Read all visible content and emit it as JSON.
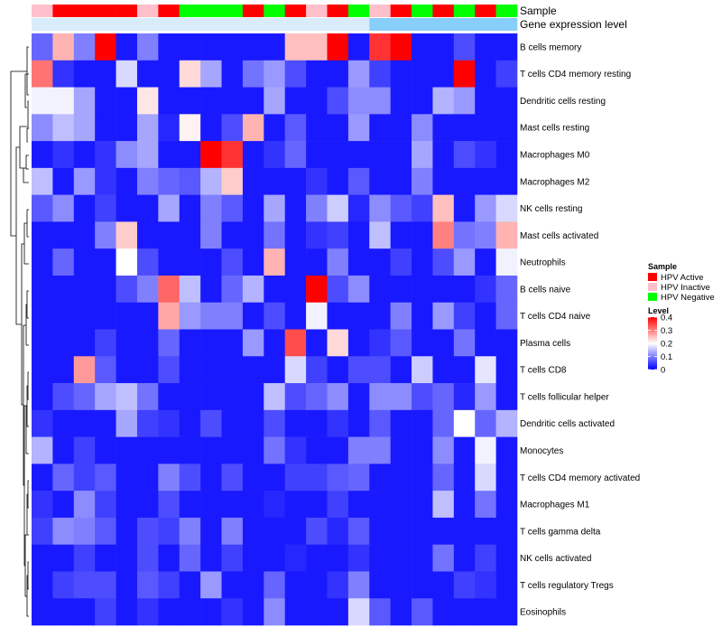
{
  "chart_data": {
    "type": "heatmap",
    "title": "",
    "row_labels": [
      "B cells memory",
      "T cells CD4 memory resting",
      "Dendritic cells resting",
      "Mast cells resting",
      "Macrophages M0",
      "Macrophages M2",
      "NK cells resting",
      "Mast cells activated",
      "Neutrophils",
      "B cells naive",
      "T cells CD4 naive",
      "Plasma cells",
      "T cells CD8",
      "T cells follicular helper",
      "Dendritic cells activated",
      "Monocytes",
      "T cells CD4 memory activated",
      "Macrophages M1",
      "T cells gamma delta",
      "NK cells activated",
      "T cells regulatory  Tregs",
      "Eosinophils"
    ],
    "annotation_tracks": [
      {
        "label": "Sample",
        "values": [
          "HPV Inactive",
          "HPV Active",
          "HPV Active",
          "HPV Active",
          "HPV Active",
          "HPV Inactive",
          "HPV Active",
          "HPV Negative",
          "HPV Negative",
          "HPV Negative",
          "HPV Active",
          "HPV Negative",
          "HPV Active",
          "HPV Inactive",
          "HPV Active",
          "HPV Negative",
          "HPV Inactive",
          "HPV Active",
          "HPV Negative",
          "HPV Active",
          "HPV Negative",
          "HPV Active",
          "HPV Negative"
        ]
      },
      {
        "label": "Gene expression level",
        "values": [
          "low",
          "low",
          "low",
          "low",
          "low",
          "low",
          "low",
          "low",
          "low",
          "low",
          "low",
          "low",
          "low",
          "low",
          "low",
          "low",
          "high",
          "high",
          "high",
          "high",
          "high",
          "high",
          "high"
        ]
      }
    ],
    "values": [
      [
        0.08,
        0.26,
        0.1,
        0.4,
        0.02,
        0.1,
        0.02,
        0.02,
        0.02,
        0.02,
        0.02,
        0.02,
        0.25,
        0.25,
        0.4,
        0.02,
        0.36,
        0.4,
        0.02,
        0.02,
        0.06,
        0.02,
        0.02
      ],
      [
        0.31,
        0.04,
        0.02,
        0.02,
        0.17,
        0.02,
        0.02,
        0.23,
        0.13,
        0.02,
        0.09,
        0.12,
        0.06,
        0.02,
        0.02,
        0.12,
        0.05,
        0.02,
        0.02,
        0.02,
        0.4,
        0.02,
        0.05
      ],
      [
        0.19,
        0.19,
        0.13,
        0.02,
        0.02,
        0.22,
        0.02,
        0.02,
        0.02,
        0.02,
        0.02,
        0.13,
        0.02,
        0.02,
        0.06,
        0.11,
        0.11,
        0.02,
        0.02,
        0.14,
        0.12,
        0.02,
        0.02
      ],
      [
        0.11,
        0.15,
        0.13,
        0.02,
        0.02,
        0.13,
        0.03,
        0.21,
        0.02,
        0.06,
        0.26,
        0.02,
        0.07,
        0.02,
        0.02,
        0.12,
        0.02,
        0.02,
        0.11,
        0.02,
        0.02,
        0.02,
        0.02
      ],
      [
        0.02,
        0.04,
        0.02,
        0.04,
        0.11,
        0.13,
        0.02,
        0.02,
        0.4,
        0.36,
        0.02,
        0.04,
        0.08,
        0.02,
        0.02,
        0.02,
        0.02,
        0.02,
        0.13,
        0.02,
        0.06,
        0.04,
        0.02
      ],
      [
        0.15,
        0.02,
        0.12,
        0.04,
        0.02,
        0.1,
        0.08,
        0.07,
        0.14,
        0.24,
        0.02,
        0.02,
        0.02,
        0.04,
        0.02,
        0.07,
        0.02,
        0.02,
        0.1,
        0.02,
        0.02,
        0.02,
        0.02
      ],
      [
        0.07,
        0.11,
        0.02,
        0.05,
        0.02,
        0.02,
        0.13,
        0.02,
        0.1,
        0.07,
        0.02,
        0.13,
        0.02,
        0.1,
        0.16,
        0.03,
        0.11,
        0.07,
        0.05,
        0.25,
        0.02,
        0.12,
        0.17
      ],
      [
        0.02,
        0.02,
        0.02,
        0.1,
        0.24,
        0.02,
        0.02,
        0.02,
        0.1,
        0.02,
        0.02,
        0.09,
        0.02,
        0.04,
        0.05,
        0.02,
        0.15,
        0.02,
        0.02,
        0.3,
        0.09,
        0.1,
        0.26
      ],
      [
        0.02,
        0.08,
        0.02,
        0.02,
        0.2,
        0.06,
        0.02,
        0.02,
        0.02,
        0.06,
        0.02,
        0.26,
        0.02,
        0.02,
        0.1,
        0.02,
        0.02,
        0.05,
        0.02,
        0.06,
        0.12,
        0.02,
        0.19
      ],
      [
        0.02,
        0.02,
        0.02,
        0.02,
        0.06,
        0.1,
        0.32,
        0.15,
        0.02,
        0.08,
        0.14,
        0.02,
        0.02,
        0.4,
        0.06,
        0.11,
        0.02,
        0.02,
        0.02,
        0.02,
        0.02,
        0.04,
        0.08
      ],
      [
        0.02,
        0.02,
        0.02,
        0.02,
        0.02,
        0.02,
        0.27,
        0.12,
        0.1,
        0.1,
        0.02,
        0.06,
        0.02,
        0.19,
        0.02,
        0.02,
        0.02,
        0.1,
        0.02,
        0.12,
        0.05,
        0.02,
        0.08
      ],
      [
        0.02,
        0.02,
        0.02,
        0.05,
        0.02,
        0.02,
        0.08,
        0.02,
        0.02,
        0.02,
        0.12,
        0.02,
        0.34,
        0.02,
        0.23,
        0.02,
        0.04,
        0.07,
        0.02,
        0.02,
        0.09,
        0.02,
        0.02
      ],
      [
        0.02,
        0.02,
        0.28,
        0.07,
        0.02,
        0.02,
        0.06,
        0.02,
        0.02,
        0.02,
        0.02,
        0.02,
        0.17,
        0.05,
        0.02,
        0.06,
        0.06,
        0.02,
        0.16,
        0.02,
        0.02,
        0.18,
        0.02
      ],
      [
        0.02,
        0.06,
        0.08,
        0.13,
        0.15,
        0.09,
        0.02,
        0.02,
        0.02,
        0.02,
        0.02,
        0.15,
        0.06,
        0.08,
        0.11,
        0.02,
        0.11,
        0.11,
        0.06,
        0.08,
        0.03,
        0.12,
        0.02
      ],
      [
        0.04,
        0.02,
        0.02,
        0.02,
        0.13,
        0.05,
        0.04,
        0.02,
        0.06,
        0.02,
        0.02,
        0.06,
        0.02,
        0.02,
        0.04,
        0.02,
        0.07,
        0.02,
        0.02,
        0.08,
        0.2,
        0.08,
        0.14
      ],
      [
        0.14,
        0.02,
        0.05,
        0.02,
        0.02,
        0.02,
        0.02,
        0.02,
        0.02,
        0.02,
        0.02,
        0.09,
        0.04,
        0.02,
        0.02,
        0.1,
        0.1,
        0.02,
        0.02,
        0.11,
        0.02,
        0.19,
        0.02
      ],
      [
        0.02,
        0.08,
        0.05,
        0.07,
        0.02,
        0.02,
        0.1,
        0.06,
        0.02,
        0.06,
        0.02,
        0.02,
        0.05,
        0.05,
        0.07,
        0.08,
        0.02,
        0.02,
        0.02,
        0.08,
        0.02,
        0.17,
        0.02
      ],
      [
        0.04,
        0.02,
        0.11,
        0.05,
        0.02,
        0.02,
        0.06,
        0.02,
        0.02,
        0.02,
        0.02,
        0.03,
        0.02,
        0.02,
        0.05,
        0.02,
        0.02,
        0.02,
        0.02,
        0.15,
        0.02,
        0.09,
        0.02
      ],
      [
        0.05,
        0.11,
        0.1,
        0.07,
        0.02,
        0.06,
        0.05,
        0.1,
        0.02,
        0.1,
        0.02,
        0.02,
        0.02,
        0.06,
        0.03,
        0.07,
        0.02,
        0.02,
        0.02,
        0.02,
        0.02,
        0.02,
        0.02
      ],
      [
        0.02,
        0.02,
        0.05,
        0.02,
        0.02,
        0.06,
        0.02,
        0.08,
        0.02,
        0.05,
        0.02,
        0.02,
        0.03,
        0.02,
        0.02,
        0.04,
        0.02,
        0.02,
        0.02,
        0.09,
        0.02,
        0.05,
        0.02
      ],
      [
        0.02,
        0.05,
        0.06,
        0.06,
        0.02,
        0.07,
        0.05,
        0.02,
        0.12,
        0.02,
        0.02,
        0.08,
        0.02,
        0.02,
        0.04,
        0.1,
        0.02,
        0.02,
        0.02,
        0.02,
        0.05,
        0.04,
        0.02
      ],
      [
        0.02,
        0.02,
        0.02,
        0.05,
        0.02,
        0.04,
        0.02,
        0.02,
        0.02,
        0.04,
        0.02,
        0.11,
        0.02,
        0.02,
        0.02,
        0.17,
        0.07,
        0.02,
        0.07,
        0.02,
        0.02,
        0.02,
        0.02
      ]
    ],
    "sample_colors": {
      "HPV Active": "#ff0000",
      "HPV Inactive": "#ffc0cb",
      "HPV Negative": "#00ff00"
    },
    "gene_expression_colors": {
      "low": "#d8ecfa",
      "high": "#87cefa"
    },
    "legend": {
      "sample_title": "Sample",
      "sample_entries": [
        "HPV Active",
        "HPV Inactive",
        "HPV Negative"
      ],
      "level_title": "Level",
      "level_ticks": [
        "0.4",
        "0.3",
        "0.2",
        "0.1",
        "0"
      ]
    },
    "color_scale": {
      "low": "#0000ff",
      "mid": "#ffffff",
      "high": "#ff0000",
      "min": 0,
      "max": 0.4
    },
    "value_range": [
      0,
      0.4
    ]
  }
}
